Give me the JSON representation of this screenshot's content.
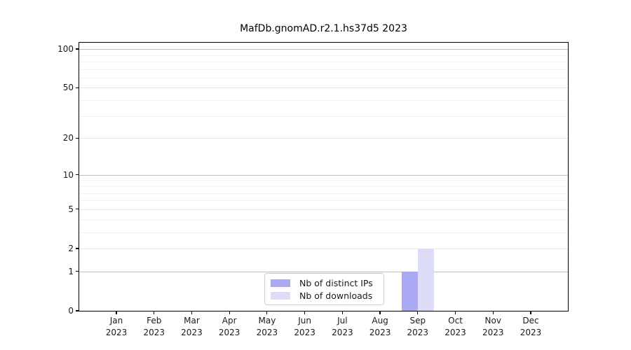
{
  "chart_data": {
    "type": "bar",
    "title": "MafDb.gnomAD.r2.1.hs37d5 2023",
    "xlabel": "",
    "ylabel": "",
    "categories": [
      "Jan",
      "Feb",
      "Mar",
      "Apr",
      "May",
      "Jun",
      "Jul",
      "Aug",
      "Sep",
      "Oct",
      "Nov",
      "Dec"
    ],
    "category_year": "2023",
    "series": [
      {
        "name": "Nb of distinct IPs",
        "color": "#a9a9f4",
        "values": [
          0,
          0,
          0,
          0,
          0,
          0,
          0,
          0,
          1,
          0,
          0,
          0
        ]
      },
      {
        "name": "Nb of downloads",
        "color": "#dcdcf9",
        "values": [
          0,
          0,
          0,
          0,
          0,
          0,
          0,
          0,
          2,
          0,
          0,
          0
        ]
      }
    ],
    "yscale": "log1p",
    "ylim": [
      0,
      112
    ],
    "yticks": [
      0,
      1,
      2,
      5,
      10,
      20,
      50,
      100
    ],
    "decade_yticks": [
      1,
      10,
      100
    ],
    "minor_yticks": [
      3,
      4,
      6,
      7,
      8,
      9,
      30,
      40,
      60,
      70,
      80,
      90
    ],
    "grid": "horizontal",
    "legend_position": "inside-lower-center"
  }
}
